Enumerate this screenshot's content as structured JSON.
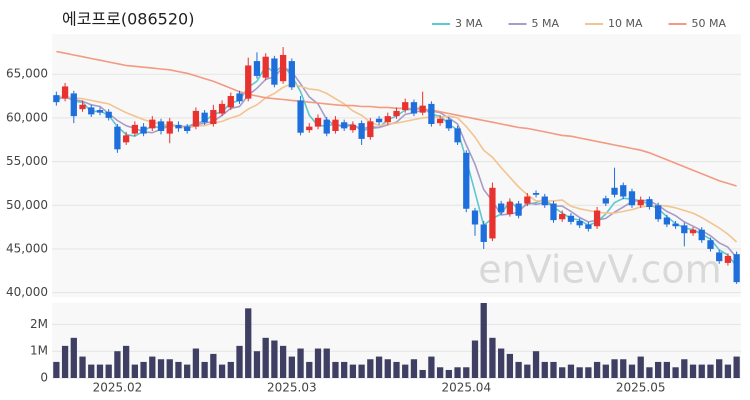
{
  "chart_data": [
    {
      "type": "candlestick",
      "title": "에코프로(086520)",
      "watermark": "enVievV.com",
      "up_color": "#e8322f",
      "down_color": "#1e6fdc",
      "legend": "top-right",
      "grid": true,
      "ylim": [
        39500,
        69600
      ],
      "yticks": [
        {
          "value": 40000,
          "label": "40,000"
        },
        {
          "value": 45000,
          "label": "45,000"
        },
        {
          "value": 50000,
          "label": "50,000"
        },
        {
          "value": 55000,
          "label": "55,000"
        },
        {
          "value": 60000,
          "label": "60,000"
        },
        {
          "value": 65000,
          "label": "65,000"
        }
      ],
      "open": [
        62600,
        62200,
        62800,
        61000,
        61200,
        60900,
        60700,
        59000,
        57200,
        58200,
        59000,
        58800,
        59600,
        58200,
        59200,
        59000,
        59000,
        60600,
        59300,
        60500,
        61200,
        62800,
        62200,
        66500,
        64600,
        66800,
        64200,
        66500,
        62000,
        58600,
        59000,
        59800,
        58500,
        59500,
        58600,
        59400,
        57800,
        59900,
        59500,
        60200,
        60900,
        61800,
        60600,
        61600,
        59400,
        59800,
        58800,
        56000,
        49400,
        47800,
        46200,
        50200,
        49000,
        50200,
        50200,
        51400,
        51000,
        50200,
        48400,
        48800,
        48200,
        47800,
        47600,
        50800,
        52000,
        52300,
        51600,
        50000,
        50700,
        50000,
        48600,
        47900,
        47700,
        46800,
        47200,
        46000,
        44600,
        43400,
        44400
      ],
      "high": [
        63000,
        64000,
        63100,
        62000,
        61500,
        61200,
        61000,
        59300,
        58400,
        59600,
        59400,
        60200,
        59900,
        60000,
        59600,
        59300,
        61200,
        60900,
        61500,
        62000,
        62900,
        63100,
        66900,
        67500,
        67400,
        67100,
        68100,
        66800,
        62500,
        59400,
        60400,
        60100,
        60200,
        59800,
        59600,
        59700,
        60000,
        60200,
        60600,
        61200,
        62200,
        62100,
        63000,
        61900,
        60300,
        60100,
        59100,
        56300,
        49700,
        48200,
        52600,
        50500,
        50800,
        50500,
        51400,
        51700,
        51300,
        50500,
        49400,
        49100,
        48500,
        48100,
        49800,
        51100,
        54300,
        52600,
        51900,
        51000,
        51000,
        50300,
        48900,
        48200,
        48000,
        47500,
        47500,
        46300,
        44900,
        44500,
        44700
      ],
      "low": [
        61400,
        61900,
        59400,
        60700,
        60100,
        60300,
        59700,
        56000,
        56900,
        57900,
        57900,
        58500,
        58100,
        57100,
        58400,
        58200,
        58700,
        59200,
        59000,
        60200,
        60900,
        61600,
        61900,
        64500,
        64300,
        63500,
        63900,
        63200,
        58000,
        58300,
        58700,
        57900,
        58200,
        58500,
        58300,
        56900,
        57500,
        59200,
        59200,
        59900,
        60600,
        60200,
        60300,
        59000,
        59100,
        58500,
        56900,
        49200,
        46500,
        45000,
        45900,
        48900,
        48700,
        48500,
        49900,
        50900,
        49700,
        48000,
        48100,
        47800,
        47400,
        47000,
        47300,
        49900,
        50900,
        50700,
        49700,
        49700,
        49500,
        48100,
        47500,
        47300,
        45300,
        46500,
        45700,
        44700,
        43300,
        43100,
        41000
      ],
      "close": [
        61800,
        63600,
        60200,
        61500,
        60400,
        60600,
        60000,
        56400,
        58000,
        59200,
        58200,
        59800,
        58500,
        59600,
        58800,
        58500,
        60800,
        59500,
        60900,
        61600,
        62500,
        61900,
        66000,
        64800,
        67000,
        63800,
        67200,
        63500,
        58300,
        59000,
        60000,
        58200,
        59800,
        58800,
        59200,
        57600,
        59600,
        59500,
        60200,
        60800,
        61800,
        60500,
        61400,
        59300,
        59900,
        58800,
        57200,
        49600,
        47800,
        45800,
        52000,
        49200,
        50400,
        48800,
        51000,
        51200,
        50000,
        48300,
        49000,
        48100,
        47700,
        47300,
        49400,
        50200,
        51200,
        51000,
        50000,
        50600,
        49800,
        48400,
        47800,
        47600,
        46800,
        47200,
        46000,
        45000,
        43600,
        44200,
        41200
      ],
      "series": [
        {
          "name": "3 MA",
          "color": "#5cc8cf",
          "values": [
            62000,
            62500,
            61900,
            61800,
            60700,
            60800,
            60300,
            59000,
            58100,
            57900,
            58500,
            59100,
            58800,
            59300,
            59000,
            59000,
            59400,
            59600,
            60400,
            60700,
            61700,
            62000,
            63500,
            64200,
            65900,
            65200,
            66000,
            64800,
            63000,
            60300,
            59100,
            59100,
            59300,
            58900,
            59300,
            58500,
            58800,
            58900,
            59800,
            60200,
            60900,
            61000,
            61200,
            60400,
            60200,
            59300,
            58600,
            55200,
            51500,
            47700,
            48500,
            49000,
            50500,
            49500,
            50100,
            50300,
            50700,
            49800,
            49100,
            48500,
            48300,
            47700,
            48100,
            49000,
            50300,
            50800,
            50700,
            50500,
            50100,
            49600,
            48700,
            47900,
            47400,
            47200,
            46700,
            46100,
            44900,
            44300,
            43000
          ]
        },
        {
          "name": "5 MA",
          "color": "#a79cc9",
          "values": [
            62200,
            62400,
            62100,
            61900,
            61500,
            61300,
            60500,
            59700,
            59100,
            58800,
            58400,
            58300,
            58700,
            59100,
            59000,
            59000,
            59200,
            59400,
            59600,
            60300,
            61100,
            61300,
            62600,
            63400,
            64400,
            64700,
            65800,
            65300,
            63900,
            62400,
            61600,
            59800,
            59100,
            59200,
            59200,
            58700,
            59000,
            58900,
            59200,
            59500,
            60400,
            60600,
            60900,
            60800,
            60600,
            60000,
            59300,
            56900,
            54700,
            51800,
            50500,
            48900,
            49000,
            49200,
            50300,
            50100,
            50300,
            49900,
            49900,
            49300,
            48600,
            48100,
            48300,
            48500,
            49200,
            49800,
            50400,
            50600,
            50500,
            50000,
            49300,
            48800,
            48100,
            47600,
            47100,
            46500,
            45700,
            45200,
            44000
          ]
        },
        {
          "name": "10 MA",
          "color": "#f2c48f",
          "values": [
            62500,
            62400,
            62300,
            62200,
            62000,
            61800,
            61600,
            61100,
            60600,
            60200,
            59800,
            59500,
            59300,
            59100,
            59000,
            58800,
            59100,
            59100,
            59400,
            59600,
            60000,
            60300,
            61000,
            61500,
            62300,
            62800,
            63500,
            63900,
            63600,
            63300,
            63200,
            62800,
            62200,
            61600,
            60800,
            60300,
            59500,
            59100,
            59300,
            59400,
            59600,
            59800,
            60000,
            60100,
            60100,
            60200,
            60000,
            59000,
            57800,
            56300,
            55500,
            54300,
            53200,
            52100,
            51200,
            50500,
            50500,
            50500,
            50600,
            49900,
            49600,
            49400,
            49200,
            49100,
            49100,
            49300,
            49500,
            49800,
            49900,
            50000,
            49900,
            49700,
            49400,
            49100,
            48600,
            48000,
            47400,
            46700,
            45800
          ]
        },
        {
          "name": "50 MA",
          "color": "#f29a82",
          "values": [
            67600,
            67400,
            67200,
            67000,
            66800,
            66600,
            66400,
            66200,
            66000,
            65900,
            65800,
            65700,
            65600,
            65500,
            65300,
            65100,
            64800,
            64500,
            64200,
            63800,
            63400,
            63000,
            62700,
            62500,
            62300,
            62200,
            62100,
            62000,
            61900,
            61800,
            61700,
            61600,
            61500,
            61400,
            61400,
            61300,
            61300,
            61200,
            61200,
            61100,
            61100,
            61000,
            61000,
            60900,
            60700,
            60500,
            60300,
            60100,
            59900,
            59700,
            59500,
            59300,
            59100,
            58900,
            58800,
            58600,
            58400,
            58200,
            58000,
            57900,
            57700,
            57500,
            57300,
            57100,
            56900,
            56700,
            56500,
            56300,
            56000,
            55600,
            55200,
            54800,
            54400,
            54000,
            53600,
            53200,
            52800,
            52500,
            52200
          ]
        }
      ]
    },
    {
      "type": "bar",
      "color": "#3e3f63",
      "grid": true,
      "categories": [
        null,
        null,
        null,
        null,
        null,
        null,
        null,
        "2025.02",
        null,
        null,
        null,
        null,
        null,
        null,
        null,
        null,
        null,
        null,
        null,
        null,
        null,
        null,
        null,
        null,
        null,
        null,
        null,
        "2025.03",
        null,
        null,
        null,
        null,
        null,
        null,
        null,
        null,
        null,
        null,
        null,
        null,
        null,
        null,
        null,
        null,
        null,
        null,
        null,
        "2025.04",
        null,
        null,
        null,
        null,
        null,
        null,
        null,
        null,
        null,
        null,
        null,
        null,
        null,
        null,
        null,
        null,
        null,
        null,
        null,
        "2025.05",
        null,
        null,
        null,
        null,
        null,
        null,
        null,
        null,
        null,
        null,
        null
      ],
      "values": [
        600000,
        1200000,
        1500000,
        800000,
        500000,
        500000,
        500000,
        1000000,
        1200000,
        500000,
        600000,
        800000,
        700000,
        700000,
        600000,
        500000,
        1100000,
        600000,
        900000,
        500000,
        600000,
        1200000,
        2600000,
        1000000,
        1500000,
        1400000,
        1200000,
        800000,
        1100000,
        600000,
        1100000,
        1100000,
        600000,
        600000,
        500000,
        500000,
        700000,
        800000,
        700000,
        600000,
        500000,
        700000,
        300000,
        800000,
        400000,
        300000,
        400000,
        400000,
        1400000,
        2800000,
        1500000,
        1100000,
        900000,
        600000,
        500000,
        1000000,
        600000,
        600000,
        400000,
        500000,
        400000,
        400000,
        600000,
        500000,
        700000,
        700000,
        500000,
        800000,
        400000,
        600000,
        600000,
        400000,
        700000,
        500000,
        500000,
        500000,
        700000,
        500000,
        800000
      ],
      "ylim": [
        0,
        2800000
      ],
      "yticks": [
        0,
        {
          "value": 1000000,
          "label": "1M"
        },
        {
          "value": 2000000,
          "label": "2M"
        }
      ]
    }
  ]
}
